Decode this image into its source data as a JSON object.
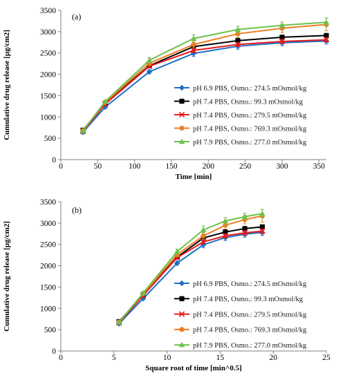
{
  "chart_data": [
    {
      "type": "line",
      "panel_label": "(a)",
      "xlabel": "Time [min]",
      "ylabel": "Cumulative drug release  [µg/cm2]",
      "xlim": [
        0,
        360
      ],
      "ylim": [
        0,
        3500
      ],
      "xticks": [
        "0",
        "50",
        "100",
        "150",
        "200",
        "250",
        "300",
        "350"
      ],
      "yticks": [
        "0",
        "500",
        "1000",
        "1500",
        "2000",
        "2500",
        "3000",
        "3500"
      ],
      "legend_position": "right",
      "grid": false,
      "x": [
        30,
        60,
        120,
        180,
        240,
        300,
        360
      ],
      "series": [
        {
          "name": "pH 6.9 PBS, Osmo.: 274.5 mOsmol/kg",
          "color": "#1f6fc6",
          "marker": "diamond",
          "values": [
            640,
            1230,
            2060,
            2490,
            2660,
            2740,
            2780
          ],
          "error": [
            20,
            30,
            50,
            70,
            70,
            70,
            70
          ]
        },
        {
          "name": "pH 7.4 PBS, Osmo.: 99.3 mOsmol/kg",
          "color": "#000000",
          "marker": "square",
          "values": [
            690,
            1320,
            2200,
            2650,
            2790,
            2870,
            2910
          ],
          "error": [
            20,
            30,
            40,
            50,
            50,
            50,
            50
          ]
        },
        {
          "name": "pH 7.4 PBS, Osmo.: 279.5 mOsmol/kg",
          "color": "#e31a1c",
          "marker": "x",
          "values": [
            660,
            1300,
            2190,
            2560,
            2700,
            2770,
            2810
          ],
          "error": [
            20,
            30,
            40,
            50,
            50,
            50,
            50
          ]
        },
        {
          "name": "pH 7.4 PBS, Osmo.: 769.3 mOsmol/kg",
          "color": "#ef7d22",
          "marker": "circle",
          "values": [
            680,
            1340,
            2260,
            2700,
            2950,
            3080,
            3170
          ],
          "error": [
            20,
            30,
            50,
            80,
            90,
            100,
            150
          ]
        },
        {
          "name": "pH 7.9 PBS, Osmo.: 277.0 mOsmol/kg",
          "color": "#6cc24a",
          "marker": "triangle",
          "values": [
            670,
            1360,
            2330,
            2840,
            3050,
            3150,
            3220
          ],
          "error": [
            20,
            30,
            60,
            90,
            80,
            80,
            100
          ]
        }
      ]
    },
    {
      "type": "line",
      "panel_label": "(b)",
      "xlabel": "Square root of time [min^0.5]",
      "ylabel": "Cumulative drug release  [µg/cm2]",
      "xlim": [
        0,
        25
      ],
      "ylim": [
        0,
        3500
      ],
      "xticks": [
        "0",
        "5",
        "10",
        "15",
        "20",
        "25"
      ],
      "yticks": [
        "0",
        "500",
        "1000",
        "1500",
        "2000",
        "2500",
        "3000",
        "3500"
      ],
      "legend_position": "right",
      "grid": false,
      "x": [
        5.48,
        7.75,
        10.95,
        13.42,
        15.49,
        17.32,
        18.97
      ],
      "series": [
        {
          "name": "pH 6.9 PBS, Osmo.: 274.5 mOsmol/kg",
          "color": "#1f6fc6",
          "marker": "diamond",
          "values": [
            640,
            1230,
            2060,
            2490,
            2660,
            2740,
            2780
          ],
          "error": [
            20,
            30,
            50,
            70,
            70,
            70,
            70
          ]
        },
        {
          "name": "pH 7.4 PBS, Osmo.: 99.3 mOsmol/kg",
          "color": "#000000",
          "marker": "square",
          "values": [
            690,
            1320,
            2200,
            2650,
            2790,
            2870,
            2910
          ],
          "error": [
            20,
            30,
            40,
            50,
            50,
            50,
            50
          ]
        },
        {
          "name": "pH 7.4 PBS, Osmo.: 279.5 mOsmol/kg",
          "color": "#e31a1c",
          "marker": "x",
          "values": [
            660,
            1300,
            2190,
            2560,
            2700,
            2770,
            2810
          ],
          "error": [
            20,
            30,
            40,
            50,
            50,
            50,
            50
          ]
        },
        {
          "name": "pH 7.4 PBS, Osmo.: 769.3 mOsmol/kg",
          "color": "#ef7d22",
          "marker": "circle",
          "values": [
            680,
            1340,
            2260,
            2700,
            2950,
            3080,
            3170
          ],
          "error": [
            20,
            30,
            50,
            80,
            90,
            100,
            150
          ]
        },
        {
          "name": "pH 7.9 PBS, Osmo.: 277.0 mOsmol/kg",
          "color": "#6cc24a",
          "marker": "triangle",
          "values": [
            670,
            1360,
            2330,
            2840,
            3050,
            3150,
            3220
          ],
          "error": [
            20,
            30,
            60,
            90,
            80,
            80,
            100
          ]
        }
      ]
    }
  ]
}
